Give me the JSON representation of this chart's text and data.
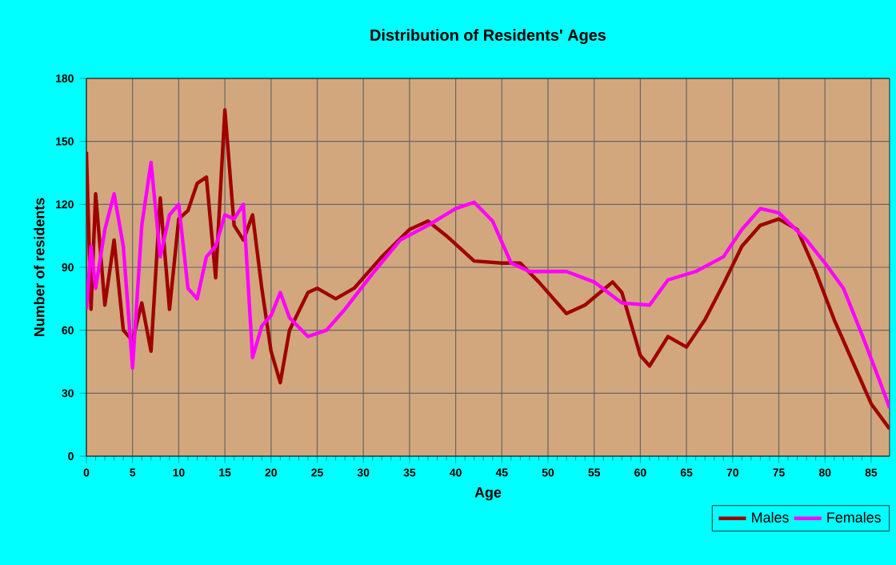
{
  "chart_data": {
    "type": "line",
    "title": "Distribution of Residents' Ages",
    "xlabel": "Age",
    "ylabel": "Number of residents",
    "xlim": [
      0,
      87
    ],
    "xticks": [
      0,
      5,
      10,
      15,
      20,
      25,
      30,
      35,
      40,
      45,
      50,
      55,
      60,
      65,
      70,
      75,
      80,
      85
    ],
    "ylim": [
      0,
      180
    ],
    "yticks": [
      0,
      30,
      60,
      90,
      120,
      150,
      180
    ],
    "grid": true,
    "legend": "bottom right",
    "line_style": "solid",
    "marker": "none",
    "series": [
      {
        "name": "Males",
        "color": "#a00000",
        "x": [
          0,
          0.5,
          1,
          2,
          3,
          4,
          5,
          6,
          7,
          8,
          9,
          10,
          11,
          12,
          13,
          14,
          15,
          16,
          17,
          18,
          19,
          20,
          21,
          22,
          24,
          25,
          27,
          29,
          32,
          35,
          37,
          39,
          42,
          45,
          47,
          49,
          52,
          54,
          57,
          58,
          60,
          61,
          63,
          65,
          67,
          69,
          71,
          73,
          75,
          77,
          79,
          81,
          83,
          85,
          87
        ],
        "values": [
          145,
          70,
          125,
          72,
          103,
          60,
          55,
          73,
          50,
          123,
          70,
          113,
          117,
          130,
          133,
          85,
          165,
          110,
          103,
          115,
          80,
          50,
          35,
          60,
          78,
          80,
          75,
          80,
          95,
          108,
          112,
          105,
          93,
          92,
          92,
          83,
          68,
          72,
          83,
          78,
          48,
          43,
          57,
          52,
          65,
          82,
          100,
          110,
          113,
          108,
          88,
          65,
          45,
          25,
          13
        ]
      },
      {
        "name": "Females",
        "color": "#ff00ff",
        "x": [
          0,
          0.5,
          1,
          2,
          3,
          4,
          5,
          6,
          7,
          8,
          9,
          10,
          11,
          12,
          13,
          14,
          15,
          16,
          17,
          18,
          19,
          20,
          21,
          22,
          24,
          26,
          28,
          31,
          34,
          37,
          40,
          42,
          44,
          46,
          48,
          52,
          55,
          58,
          61,
          63,
          66,
          69,
          71,
          73,
          75,
          78,
          80,
          82,
          84,
          86,
          87
        ],
        "values": [
          70,
          100,
          80,
          108,
          125,
          100,
          42,
          110,
          140,
          95,
          115,
          120,
          80,
          75,
          95,
          100,
          115,
          113,
          120,
          47,
          62,
          67,
          78,
          66,
          57,
          60,
          70,
          87,
          103,
          110,
          118,
          121,
          112,
          92,
          88,
          88,
          83,
          73,
          72,
          84,
          88,
          95,
          108,
          118,
          116,
          103,
          92,
          80,
          58,
          35,
          23
        ]
      }
    ]
  }
}
